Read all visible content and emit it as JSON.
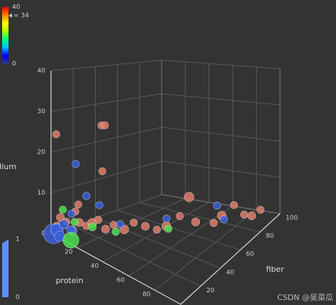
{
  "chart_data": {
    "type": "scatter3D",
    "xlabel": "protein",
    "ylabel": "fiber",
    "zlabel": "sodium",
    "xlim": [
      0,
      100
    ],
    "xticks": [
      20,
      40,
      60,
      80
    ],
    "ylim": [
      0,
      100
    ],
    "yticks": [
      20,
      40,
      60,
      80,
      100
    ],
    "zlim": [
      0,
      40
    ],
    "zticks": [
      0,
      10,
      20,
      30,
      40
    ],
    "grid": true,
    "series": [
      {
        "color": "#e07b6a",
        "x": [
          2,
          3,
          5,
          4,
          8,
          6,
          10,
          12,
          15,
          18,
          22,
          25,
          30,
          35,
          40,
          45,
          50,
          55,
          60,
          62,
          70,
          75,
          80,
          85,
          88,
          92,
          5,
          6,
          4,
          10
        ],
        "y": [
          3,
          5,
          8,
          20,
          10,
          15,
          14,
          18,
          20,
          22,
          24,
          28,
          32,
          35,
          40,
          45,
          48,
          55,
          58,
          62,
          70,
          72,
          78,
          82,
          86,
          90,
          40,
          42,
          0,
          35
        ],
        "z": [
          2,
          4,
          3,
          6,
          1,
          5,
          3,
          2,
          3,
          4,
          2,
          3,
          2,
          4,
          3,
          2,
          3,
          5,
          10,
          3,
          2,
          4,
          6,
          3,
          2,
          3,
          25,
          25,
          25,
          14
        ],
        "size": [
          0.2,
          0.25,
          0.2,
          0.2,
          0.3,
          0.2,
          0.25,
          0.2,
          0.3,
          0.2,
          0.25,
          0.2,
          0.3,
          0.2,
          0.25,
          0.2,
          0.3,
          0.2,
          0.35,
          0.25,
          0.2,
          0.3,
          0.2,
          0.2,
          0.25,
          0.2,
          0.2,
          0.2,
          0.2,
          0.2
        ]
      },
      {
        "color": "#3a5fd9",
        "x": [
          1,
          2,
          3,
          5,
          3,
          8,
          6,
          10,
          12,
          20,
          2,
          40,
          70,
          60
        ],
        "y": [
          1,
          3,
          8,
          2,
          15,
          10,
          25,
          6,
          30,
          40,
          20,
          60,
          80,
          85
        ],
        "z": [
          0,
          1,
          2,
          0,
          4,
          1,
          8,
          2,
          6,
          1,
          16,
          2,
          1,
          3
        ],
        "size": [
          1,
          0.5,
          0.3,
          0.4,
          0.2,
          0.3,
          0.2,
          0.25,
          0.2,
          0.2,
          0.2,
          0.2,
          0.2,
          0.2
        ]
      },
      {
        "color": "#4ee04e",
        "x": [
          12,
          8,
          15,
          25,
          50,
          4
        ],
        "y": [
          4,
          12,
          20,
          30,
          50,
          6
        ],
        "z": [
          0,
          3,
          2,
          1,
          2,
          6
        ],
        "size": [
          0.75,
          0.2,
          0.25,
          0.2,
          0.2,
          0.2
        ]
      }
    ],
    "visual_map": {
      "range": [
        0,
        40
      ],
      "handle": {
        "value": 34,
        "label": "= 34"
      },
      "colors": [
        "#313695",
        "#0000ff",
        "#00bfff",
        "#00ff80",
        "#aaff00",
        "#ffff00",
        "#ff8000",
        "#ff0000"
      ]
    },
    "size_map": {
      "range": [
        0,
        1
      ],
      "color": "#5b8ff9"
    }
  },
  "watermark": "CSDN @吴菜瓜"
}
